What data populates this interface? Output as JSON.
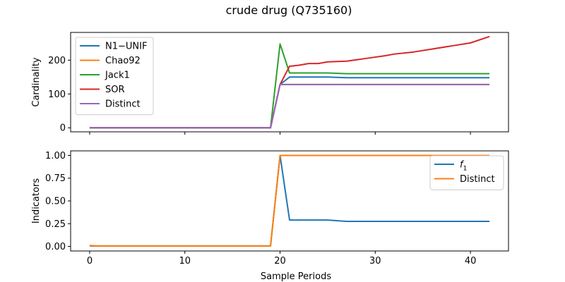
{
  "figure": {
    "title": "crude drug (Q735160)"
  },
  "chart_data": [
    {
      "type": "line",
      "title": "",
      "xlabel": "",
      "ylabel": "Cardinality",
      "xlim": [
        -2,
        44
      ],
      "ylim": [
        -12,
        282
      ],
      "xticks": [
        0,
        10,
        20,
        30,
        40
      ],
      "show_xtick_labels": false,
      "yticks": [
        0,
        100,
        200
      ],
      "legend_position": "upper-left",
      "grid": false,
      "series": [
        {
          "name": "N1−UNIF",
          "color": "#1f77b4",
          "points": [
            [
              0,
              0
            ],
            [
              19,
              0
            ],
            [
              20,
              128
            ],
            [
              21,
              150
            ],
            [
              23,
              150
            ],
            [
              25,
              150
            ],
            [
              27,
              148
            ],
            [
              42,
              148
            ]
          ]
        },
        {
          "name": "Chao92",
          "color": "#ff7f0e",
          "points": [
            [
              0,
              0
            ],
            [
              19,
              0
            ],
            [
              20,
              128
            ],
            [
              21,
              128
            ],
            [
              42,
              128
            ]
          ]
        },
        {
          "name": "Jack1",
          "color": "#2ca02c",
          "points": [
            [
              0,
              0
            ],
            [
              19,
              0
            ],
            [
              20,
              248
            ],
            [
              21,
              162
            ],
            [
              25,
              162
            ],
            [
              27,
              160
            ],
            [
              42,
              160
            ]
          ]
        },
        {
          "name": "SOR",
          "color": "#d62728",
          "points": [
            [
              0,
              0
            ],
            [
              19,
              0
            ],
            [
              20,
              128
            ],
            [
              21,
              182
            ],
            [
              22,
              185
            ],
            [
              23,
              190
            ],
            [
              24,
              190
            ],
            [
              25,
              195
            ],
            [
              27,
              197
            ],
            [
              29,
              205
            ],
            [
              31,
              213
            ],
            [
              32,
              218
            ],
            [
              34,
              224
            ],
            [
              36,
              233
            ],
            [
              38,
              242
            ],
            [
              40,
              251
            ],
            [
              42,
              270
            ]
          ]
        },
        {
          "name": "Distinct",
          "color": "#9467bd",
          "points": [
            [
              0,
              0
            ],
            [
              19,
              0
            ],
            [
              20,
              128
            ],
            [
              21,
              128
            ],
            [
              42,
              128
            ]
          ]
        }
      ]
    },
    {
      "type": "line",
      "title": "",
      "xlabel": "Sample Periods",
      "ylabel": "Indicators",
      "xlim": [
        -2,
        44
      ],
      "ylim": [
        -0.05,
        1.05
      ],
      "xticks": [
        0,
        10,
        20,
        30,
        40
      ],
      "show_xtick_labels": true,
      "yticks": [
        0.0,
        0.25,
        0.5,
        0.75,
        1.0
      ],
      "ytick_labels": [
        "0.00",
        "0.25",
        "0.50",
        "0.75",
        "1.00"
      ],
      "legend_position": "upper-right",
      "grid": false,
      "series": [
        {
          "name": "f1",
          "name_base": "f",
          "name_sub": "1",
          "color": "#1f77b4",
          "points": [
            [
              0,
              0.005
            ],
            [
              19,
              0.005
            ],
            [
              20,
              1.0
            ],
            [
              21,
              0.29
            ],
            [
              25,
              0.29
            ],
            [
              27,
              0.275
            ],
            [
              42,
              0.275
            ]
          ]
        },
        {
          "name": "Distinct",
          "color": "#ff7f0e",
          "points": [
            [
              0,
              0.01
            ],
            [
              1,
              0.005
            ],
            [
              19,
              0.005
            ],
            [
              20,
              1.0
            ],
            [
              42,
              1.0
            ]
          ]
        }
      ]
    }
  ]
}
